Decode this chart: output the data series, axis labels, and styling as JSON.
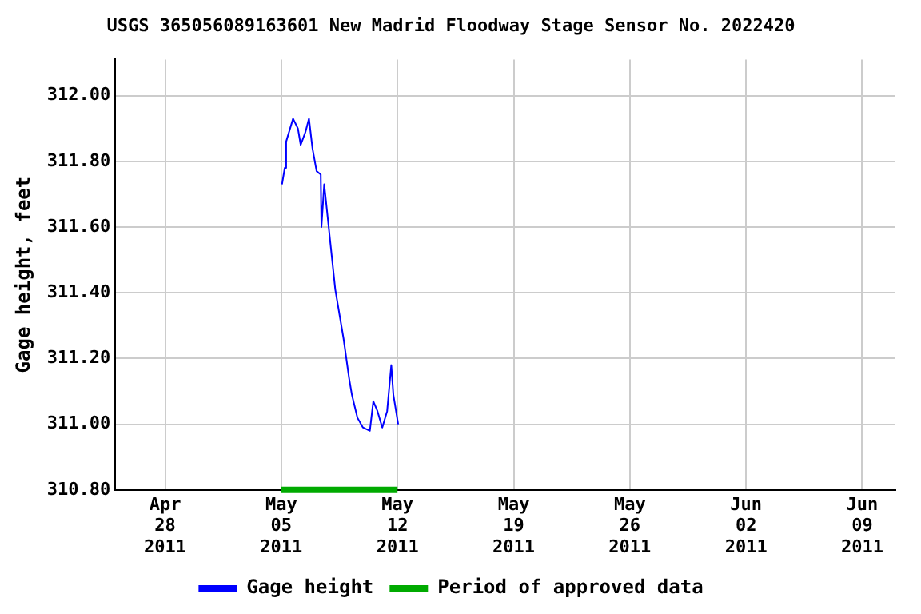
{
  "chart_data": {
    "type": "line",
    "title": "USGS 365056089163601 New Madrid Floodway Stage Sensor No. 2022420",
    "ylabel": "Gage height, feet",
    "x": [
      "2011-05-05T01:00",
      "2011-05-05T05:00",
      "2011-05-05T07:00",
      "2011-05-05T17:00",
      "2011-05-06T00:00",
      "2011-05-06T04:00",
      "2011-05-06T11:00",
      "2011-05-06T16:00",
      "2011-05-06T21:00",
      "2011-05-07T03:00",
      "2011-05-07T09:00",
      "2011-05-07T10:00",
      "2011-05-07T14:00",
      "2011-05-07T23:00",
      "2011-05-08T06:00",
      "2011-05-08T18:00",
      "2011-05-09T02:00",
      "2011-05-09T06:00",
      "2011-05-09T14:00",
      "2011-05-09T22:00",
      "2011-05-10T08:00",
      "2011-05-10T13:00",
      "2011-05-10T19:00",
      "2011-05-11T02:00",
      "2011-05-11T09:00",
      "2011-05-11T15:00",
      "2011-05-11T18:00",
      "2011-05-12T01:00"
    ],
    "series": [
      {
        "name": "Gage height",
        "color": "#0000ff",
        "values": [
          311.73,
          311.78,
          311.86,
          311.93,
          311.9,
          311.85,
          311.89,
          311.93,
          311.84,
          311.77,
          311.76,
          311.6,
          311.73,
          311.55,
          311.41,
          311.26,
          311.14,
          311.09,
          311.02,
          310.99,
          310.98,
          311.07,
          311.04,
          310.99,
          311.04,
          311.18,
          311.09,
          311.0
        ]
      },
      {
        "name": "Period of approved data",
        "color": "#00aa00",
        "x": [
          "2011-05-05T00:00",
          "2011-05-12T00:00"
        ],
        "values": [
          310.8,
          310.8
        ]
      }
    ],
    "xlim": [
      "2011-04-25",
      "2011-06-11"
    ],
    "xticks": [
      {
        "value": "2011-04-28",
        "label": "Apr 28 2011"
      },
      {
        "value": "2011-05-05",
        "label": "May 05 2011"
      },
      {
        "value": "2011-05-12",
        "label": "May 12 2011"
      },
      {
        "value": "2011-05-19",
        "label": "May 19 2011"
      },
      {
        "value": "2011-05-26",
        "label": "May 26 2011"
      },
      {
        "value": "2011-06-02",
        "label": "Jun 02 2011"
      },
      {
        "value": "2011-06-09",
        "label": "Jun 09 2011"
      }
    ],
    "ylim": [
      310.8,
      312.11
    ],
    "yticks": [
      {
        "value": 310.8,
        "label": "310.80"
      },
      {
        "value": 311,
        "label": "311.00"
      },
      {
        "value": 311.2,
        "label": "311.20"
      },
      {
        "value": 311.4,
        "label": "311.40"
      },
      {
        "value": 311.6,
        "label": "311.60"
      },
      {
        "value": 311.8,
        "label": "311.80"
      },
      {
        "value": 312,
        "label": "312.00"
      }
    ],
    "grid": true,
    "legend": "bottom",
    "marker": "none",
    "line_style": "solid"
  }
}
